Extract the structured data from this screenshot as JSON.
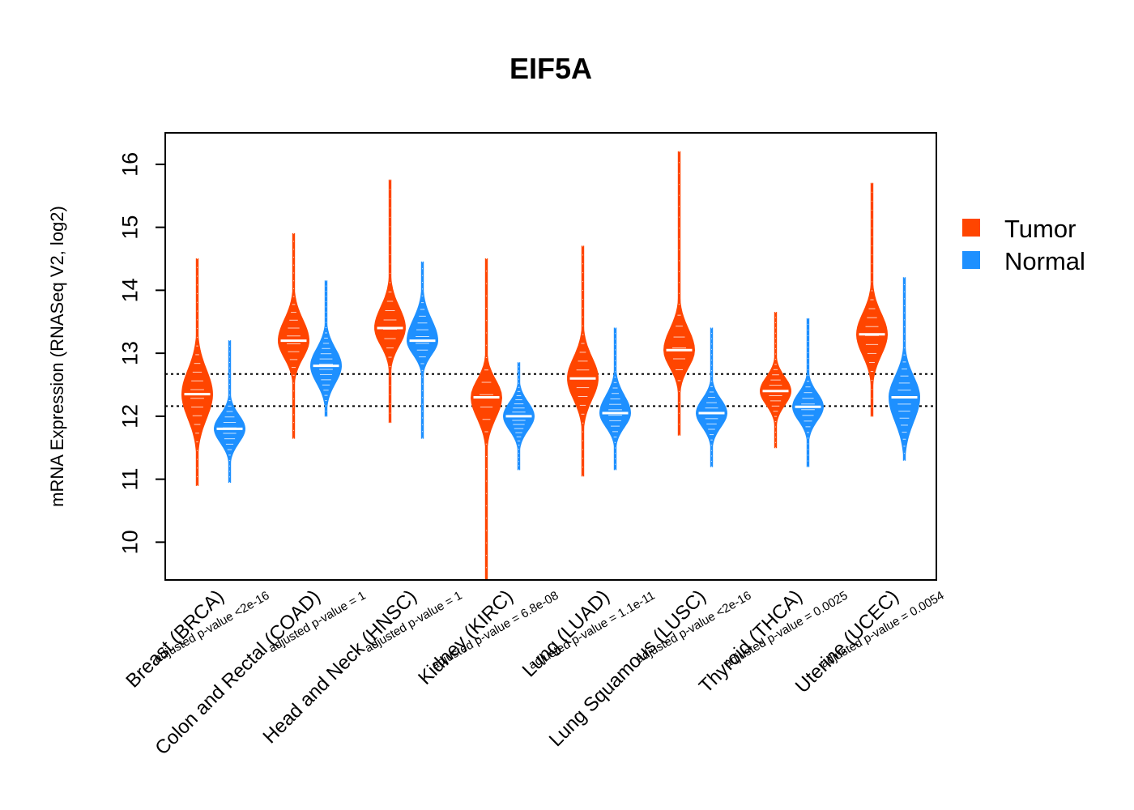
{
  "chart_data": {
    "type": "violin",
    "title": "EIF5A",
    "ylabel": "mRNA Expression (RNASeq V2, log2)",
    "xlabel": "",
    "ylim": [
      9.4,
      16.5
    ],
    "yticks": [
      10,
      11,
      12,
      13,
      14,
      15,
      16
    ],
    "reference_lines": [
      12.67,
      12.16
    ],
    "legend": {
      "position": "right",
      "items": [
        {
          "name": "Tumor",
          "color": "#FF4500"
        },
        {
          "name": "Normal",
          "color": "#1E90FF"
        }
      ]
    },
    "groups": [
      {
        "category": "Breast (BRCA)",
        "pvalue": "adjusted p-value <2e-16",
        "tumor": {
          "median": 12.35,
          "min": 10.9,
          "max": 14.5,
          "q1": 12.0,
          "q3": 12.7
        },
        "normal": {
          "median": 11.8,
          "min": 10.95,
          "max": 13.2,
          "q1": 11.6,
          "q3": 12.0
        }
      },
      {
        "category": "Colon and Rectal (COAD)",
        "pvalue": "adjusted p-value = 1",
        "tumor": {
          "median": 13.2,
          "min": 11.65,
          "max": 14.9,
          "q1": 12.95,
          "q3": 13.5
        },
        "normal": {
          "median": 12.8,
          "min": 12.0,
          "max": 14.15,
          "q1": 12.55,
          "q3": 13.05
        }
      },
      {
        "category": "Head and Neck (HNSC)",
        "pvalue": "adjusted p-value = 1",
        "tumor": {
          "median": 13.4,
          "min": 11.9,
          "max": 15.75,
          "q1": 13.15,
          "q3": 13.7
        },
        "normal": {
          "median": 13.2,
          "min": 11.65,
          "max": 14.45,
          "q1": 13.0,
          "q3": 13.5
        }
      },
      {
        "category": "Kidney (KIRC)",
        "pvalue": "adjusted p-value = 6.8e-08",
        "tumor": {
          "median": 12.3,
          "min": 9.4,
          "max": 14.5,
          "q1": 12.0,
          "q3": 12.55
        },
        "normal": {
          "median": 12.0,
          "min": 11.15,
          "max": 12.85,
          "q1": 11.8,
          "q3": 12.2
        }
      },
      {
        "category": "Lung (LUAD)",
        "pvalue": "adjusted p-value = 1.1e-11",
        "tumor": {
          "median": 12.6,
          "min": 11.05,
          "max": 14.7,
          "q1": 12.3,
          "q3": 12.9
        },
        "normal": {
          "median": 12.05,
          "min": 11.15,
          "max": 13.4,
          "q1": 11.85,
          "q3": 12.3
        }
      },
      {
        "category": "Lung Squamous (LUSC)",
        "pvalue": "adjusted p-value <2e-16",
        "tumor": {
          "median": 13.05,
          "min": 11.7,
          "max": 16.2,
          "q1": 12.8,
          "q3": 13.35
        },
        "normal": {
          "median": 12.05,
          "min": 11.2,
          "max": 13.4,
          "q1": 11.85,
          "q3": 12.25
        }
      },
      {
        "category": "Thyroid (THCA)",
        "pvalue": "adjusted p-value = 0.0025",
        "tumor": {
          "median": 12.4,
          "min": 11.5,
          "max": 13.65,
          "q1": 12.2,
          "q3": 12.6
        },
        "normal": {
          "median": 12.15,
          "min": 11.2,
          "max": 13.55,
          "q1": 11.95,
          "q3": 12.35
        }
      },
      {
        "category": "Uterine (UCEC)",
        "pvalue": "adjusted p-value = 0.0054",
        "tumor": {
          "median": 13.3,
          "min": 12.0,
          "max": 15.7,
          "q1": 13.0,
          "q3": 13.6
        },
        "normal": {
          "median": 12.3,
          "min": 11.3,
          "max": 14.2,
          "q1": 11.95,
          "q3": 12.6
        }
      }
    ]
  }
}
